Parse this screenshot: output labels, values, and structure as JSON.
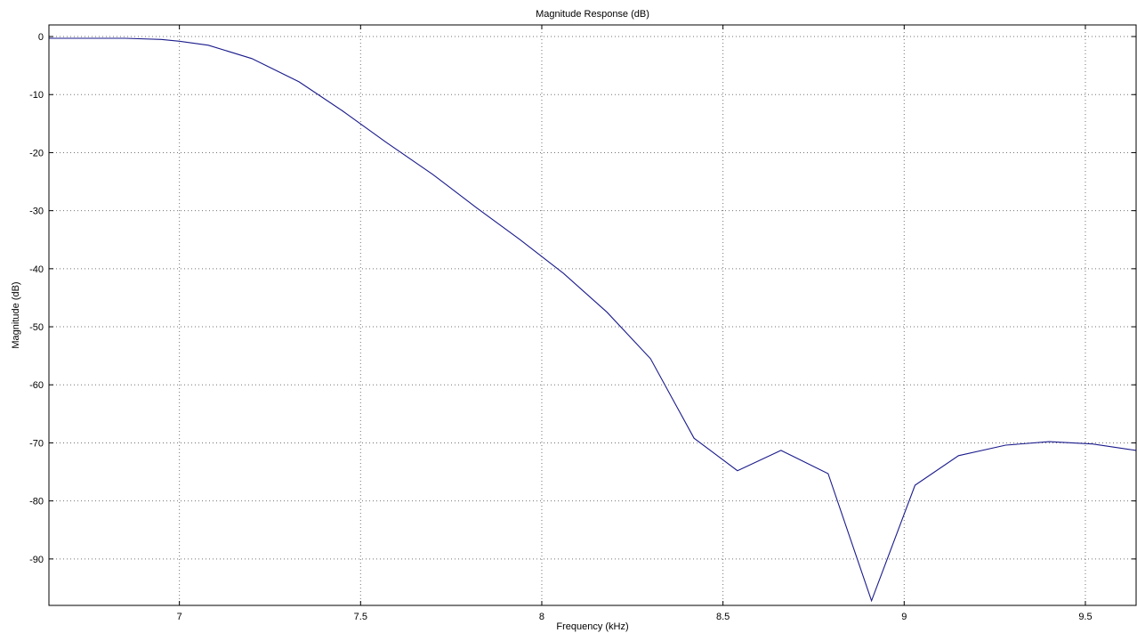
{
  "chart_data": {
    "type": "line",
    "title": "Magnitude Response (dB)",
    "xlabel": "Frequency (kHz)",
    "ylabel": "Magnitude (dB)",
    "xlim": [
      6.64,
      9.64
    ],
    "ylim": [
      -98,
      2
    ],
    "grid": true,
    "xticks": [
      7,
      7.5,
      8,
      8.5,
      9,
      9.5
    ],
    "xtick_labels": [
      "7",
      "7.5",
      "8",
      "8.5",
      "9",
      "9.5"
    ],
    "yticks": [
      0,
      -10,
      -20,
      -30,
      -40,
      -50,
      -60,
      -70,
      -80,
      -90
    ],
    "ytick_labels": [
      "0",
      "-10",
      "-20",
      "-30",
      "-40",
      "-50",
      "-60",
      "-70",
      "-80",
      "-90"
    ],
    "series": [
      {
        "color": "#1a1a8c",
        "x": [
          6.64,
          6.75,
          6.85,
          6.95,
          7.0,
          7.08,
          7.2,
          7.33,
          7.45,
          7.57,
          7.7,
          7.82,
          7.94,
          8.06,
          8.18,
          8.3,
          8.42,
          8.54,
          8.66,
          8.79,
          8.91,
          9.03,
          9.15,
          9.28,
          9.4,
          9.52,
          9.64
        ],
        "y": [
          -0.3,
          -0.3,
          -0.3,
          -0.5,
          -0.8,
          -1.5,
          -3.8,
          -7.8,
          -12.8,
          -18.2,
          -23.8,
          -29.5,
          -35.0,
          -40.8,
          -47.5,
          -55.5,
          -69.2,
          -74.8,
          -71.3,
          -75.3,
          -97.2,
          -77.3,
          -72.2,
          -70.4,
          -69.8,
          -70.2,
          -71.3
        ]
      }
    ]
  }
}
